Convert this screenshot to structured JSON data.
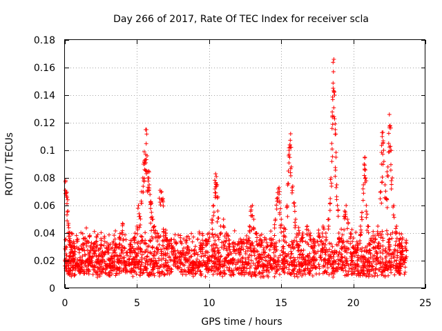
{
  "chart_data": {
    "type": "scatter",
    "title": "Day 266 of 2017, Rate Of TEC Index for receiver scla",
    "xlabel": "GPS time / hours",
    "ylabel": "ROTI / TECUs",
    "xlim": [
      0,
      25
    ],
    "ylim": [
      0,
      0.18
    ],
    "xticks": [
      0,
      5,
      10,
      15,
      20,
      25
    ],
    "xtick_labels": [
      "0",
      "5",
      "10",
      "15",
      "20",
      "25"
    ],
    "yticks": [
      0,
      0.02,
      0.04,
      0.06,
      0.08,
      0.1,
      0.12,
      0.14,
      0.16,
      0.18
    ],
    "ytick_labels": [
      "0",
      "0.02",
      "0.04",
      "0.06",
      "0.08",
      "0.1",
      "0.12",
      "0.14",
      "0.16",
      "0.18"
    ],
    "grid": true,
    "marker": "+",
    "color": "#ff0000",
    "data_range_x": [
      0,
      23.7
    ],
    "series": [
      {
        "name": "ROTI",
        "points": [
          [
            0.05,
            0.078
          ],
          [
            0.1,
            0.07
          ],
          [
            0.15,
            0.066
          ],
          [
            0.2,
            0.056
          ],
          [
            0.25,
            0.047
          ],
          [
            0.3,
            0.04
          ],
          [
            0.35,
            0.036
          ],
          [
            0.45,
            0.03
          ],
          [
            0.6,
            0.024
          ],
          [
            0.8,
            0.018
          ],
          [
            1.0,
            0.014
          ],
          [
            1.3,
            0.012
          ],
          [
            1.7,
            0.025
          ],
          [
            2.0,
            0.03
          ],
          [
            2.2,
            0.034
          ],
          [
            2.5,
            0.036
          ],
          [
            3.0,
            0.03
          ],
          [
            3.5,
            0.032
          ],
          [
            3.8,
            0.037
          ],
          [
            4.0,
            0.047
          ],
          [
            4.5,
            0.032
          ],
          [
            4.8,
            0.036
          ],
          [
            5.0,
            0.045
          ],
          [
            5.1,
            0.06
          ],
          [
            5.2,
            0.052
          ],
          [
            5.3,
            0.07
          ],
          [
            5.4,
            0.08
          ],
          [
            5.45,
            0.09
          ],
          [
            5.5,
            0.099
          ],
          [
            5.55,
            0.093
          ],
          [
            5.6,
            0.097
          ],
          [
            5.65,
            0.115
          ],
          [
            5.7,
            0.096
          ],
          [
            5.75,
            0.08
          ],
          [
            5.8,
            0.085
          ],
          [
            5.85,
            0.075
          ],
          [
            5.9,
            0.068
          ],
          [
            5.95,
            0.062
          ],
          [
            6.0,
            0.055
          ],
          [
            6.1,
            0.05
          ],
          [
            6.2,
            0.045
          ],
          [
            6.4,
            0.04
          ],
          [
            6.6,
            0.071
          ],
          [
            6.7,
            0.07
          ],
          [
            6.8,
            0.065
          ],
          [
            7.0,
            0.04
          ],
          [
            7.2,
            0.034
          ],
          [
            7.5,
            0.03
          ],
          [
            8.0,
            0.026
          ],
          [
            8.5,
            0.03
          ],
          [
            9.0,
            0.028
          ],
          [
            9.5,
            0.032
          ],
          [
            9.8,
            0.035
          ],
          [
            10.0,
            0.04
          ],
          [
            10.2,
            0.05
          ],
          [
            10.3,
            0.06
          ],
          [
            10.4,
            0.072
          ],
          [
            10.45,
            0.083
          ],
          [
            10.5,
            0.081
          ],
          [
            10.55,
            0.075
          ],
          [
            10.6,
            0.056
          ],
          [
            10.8,
            0.045
          ],
          [
            11.0,
            0.05
          ],
          [
            11.2,
            0.04
          ],
          [
            11.4,
            0.035
          ],
          [
            11.7,
            0.03
          ],
          [
            12.0,
            0.032
          ],
          [
            12.3,
            0.034
          ],
          [
            12.6,
            0.038
          ],
          [
            12.8,
            0.045
          ],
          [
            12.9,
            0.059
          ],
          [
            13.0,
            0.06
          ],
          [
            13.1,
            0.05
          ],
          [
            13.3,
            0.04
          ],
          [
            13.6,
            0.035
          ],
          [
            14.0,
            0.033
          ],
          [
            14.3,
            0.036
          ],
          [
            14.6,
            0.05
          ],
          [
            14.7,
            0.065
          ],
          [
            14.8,
            0.072
          ],
          [
            14.85,
            0.073
          ],
          [
            14.9,
            0.062
          ],
          [
            15.0,
            0.05
          ],
          [
            15.2,
            0.044
          ],
          [
            15.4,
            0.06
          ],
          [
            15.5,
            0.085
          ],
          [
            15.55,
            0.1
          ],
          [
            15.6,
            0.104
          ],
          [
            15.65,
            0.112
          ],
          [
            15.7,
            0.088
          ],
          [
            15.8,
            0.074
          ],
          [
            15.9,
            0.062
          ],
          [
            16.0,
            0.05
          ],
          [
            16.2,
            0.044
          ],
          [
            16.5,
            0.04
          ],
          [
            16.8,
            0.045
          ],
          [
            17.0,
            0.04
          ],
          [
            17.3,
            0.035
          ],
          [
            17.6,
            0.04
          ],
          [
            17.9,
            0.045
          ],
          [
            18.1,
            0.04
          ],
          [
            18.3,
            0.05
          ],
          [
            18.4,
            0.065
          ],
          [
            18.45,
            0.08
          ],
          [
            18.5,
            0.105
          ],
          [
            18.55,
            0.125
          ],
          [
            18.6,
            0.145
          ],
          [
            18.62,
            0.157
          ],
          [
            18.65,
            0.166
          ],
          [
            18.7,
            0.14
          ],
          [
            18.75,
            0.115
          ],
          [
            18.8,
            0.095
          ],
          [
            18.85,
            0.075
          ],
          [
            18.9,
            0.06
          ],
          [
            19.0,
            0.04
          ],
          [
            19.2,
            0.035
          ],
          [
            19.4,
            0.056
          ],
          [
            19.5,
            0.06
          ],
          [
            19.6,
            0.05
          ],
          [
            19.8,
            0.04
          ],
          [
            20.0,
            0.03
          ],
          [
            20.3,
            0.032
          ],
          [
            20.5,
            0.045
          ],
          [
            20.6,
            0.055
          ],
          [
            20.7,
            0.075
          ],
          [
            20.75,
            0.09
          ],
          [
            20.8,
            0.095
          ],
          [
            20.85,
            0.08
          ],
          [
            20.9,
            0.06
          ],
          [
            21.0,
            0.045
          ],
          [
            21.2,
            0.035
          ],
          [
            21.5,
            0.038
          ],
          [
            21.7,
            0.045
          ],
          [
            21.9,
            0.07
          ],
          [
            21.95,
            0.09
          ],
          [
            22.0,
            0.11
          ],
          [
            22.05,
            0.113
          ],
          [
            22.1,
            0.1
          ],
          [
            22.2,
            0.075
          ],
          [
            22.3,
            0.065
          ],
          [
            22.4,
            0.088
          ],
          [
            22.45,
            0.105
          ],
          [
            22.5,
            0.126
          ],
          [
            22.55,
            0.118
          ],
          [
            22.6,
            0.1
          ],
          [
            22.7,
            0.08
          ],
          [
            22.8,
            0.06
          ],
          [
            23.0,
            0.045
          ],
          [
            23.2,
            0.035
          ],
          [
            23.4,
            0.03
          ],
          [
            23.6,
            0.022
          ]
        ]
      }
    ]
  }
}
